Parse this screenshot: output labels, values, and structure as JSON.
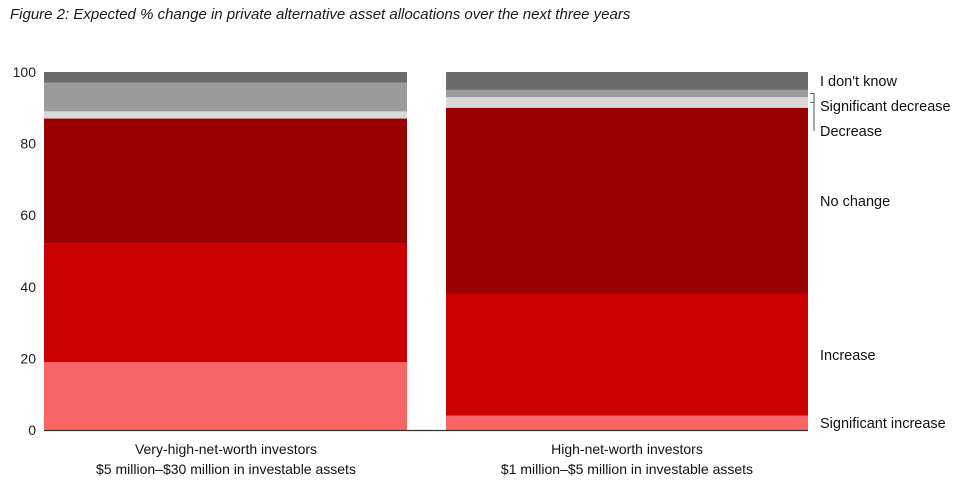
{
  "chart_data": {
    "type": "bar",
    "stacked": true,
    "title": "Figure 2: Expected % change in private alternative asset allocations over the next three years",
    "xlabel": "",
    "ylabel": "",
    "ylim": [
      0,
      100
    ],
    "yticks": [
      0,
      20,
      40,
      60,
      80,
      100
    ],
    "categories": [
      {
        "line1": "Very-high-net-worth investors",
        "line2": "$5 million–$30 million in investable assets"
      },
      {
        "line1": "High-net-worth investors",
        "line2": "$1 million–$5 million in investable assets"
      }
    ],
    "series": [
      {
        "name": "Significant increase",
        "color": "#f96464",
        "values": [
          19,
          4
        ]
      },
      {
        "name": "Increase",
        "color": "#cc0000",
        "values": [
          33,
          34
        ]
      },
      {
        "name": "No change",
        "color": "#990000",
        "values": [
          35,
          52
        ]
      },
      {
        "name": "Decrease",
        "color": "#d9d9d9",
        "values": [
          2,
          3
        ]
      },
      {
        "name": "Significant decrease",
        "color": "#9b9b9b",
        "values": [
          8,
          2
        ]
      },
      {
        "name": "I don't know",
        "color": "#6b6b6b",
        "values": [
          3,
          5
        ]
      }
    ],
    "legend": "right, labels aligned to segments of second bar"
  }
}
